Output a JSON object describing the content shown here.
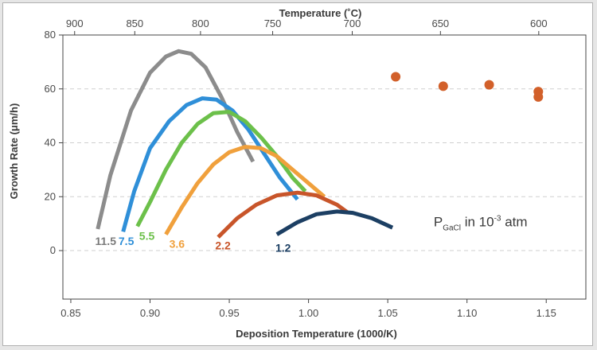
{
  "chart_data": {
    "type": "line",
    "xlabel": "Deposition Temperature (1000/K)",
    "ylabel": "Growth Rate (μm/h)",
    "top_xlabel": "Temperature (˚C)",
    "xlim": [
      0.845,
      1.175
    ],
    "ylim": [
      -18,
      80
    ],
    "x_ticks": [
      0.85,
      0.9,
      0.95,
      1.0,
      1.05,
      1.1,
      1.15
    ],
    "x_tick_labels": [
      "0.85",
      "0.90",
      "0.95",
      "1.00",
      "1.05",
      "1.10",
      "1.15"
    ],
    "y_ticks": [
      0,
      20,
      40,
      60,
      80
    ],
    "y_tick_labels": [
      "0",
      "20",
      "40",
      "60",
      "80"
    ],
    "top_ticks": [
      900,
      850,
      800,
      750,
      700,
      650,
      600
    ],
    "top_tick_labels": [
      "900",
      "850",
      "800",
      "750",
      "700",
      "650",
      "600"
    ],
    "grid": "horizontal dashed",
    "annotation": {
      "main": "P",
      "sub": "GaCl",
      "mid": " in 10",
      "sup": "-3",
      "tail": " atm"
    },
    "series": [
      {
        "name": "11.5",
        "color": "#8c8c8c",
        "x": [
          0.867,
          0.875,
          0.888,
          0.9,
          0.91,
          0.918,
          0.926,
          0.935,
          0.945,
          0.955,
          0.965
        ],
        "y": [
          8,
          28,
          52,
          66,
          72,
          74,
          73,
          68,
          57,
          44,
          33
        ]
      },
      {
        "name": "7.5",
        "color": "#2f8fd8",
        "x": [
          0.883,
          0.89,
          0.9,
          0.912,
          0.923,
          0.933,
          0.942,
          0.952,
          0.962,
          0.972,
          0.982,
          0.993
        ],
        "y": [
          7,
          22,
          38,
          48,
          54,
          56.5,
          56,
          52,
          45,
          36,
          27,
          19
        ]
      },
      {
        "name": "5.5",
        "color": "#6cc04a",
        "x": [
          0.892,
          0.9,
          0.91,
          0.92,
          0.93,
          0.94,
          0.95,
          0.96,
          0.97,
          0.98,
          0.99,
          0.998
        ],
        "y": [
          9,
          18,
          30,
          40,
          47,
          51,
          51.5,
          48,
          42,
          35,
          27,
          22
        ]
      },
      {
        "name": "3.6",
        "color": "#f0a03c",
        "x": [
          0.91,
          0.92,
          0.93,
          0.94,
          0.95,
          0.96,
          0.97,
          0.98,
          0.99,
          1.0,
          1.01
        ],
        "y": [
          6,
          16,
          25,
          32,
          36.5,
          38.5,
          38,
          35,
          30,
          25,
          20
        ]
      },
      {
        "name": "2.2",
        "color": "#c8552a",
        "x": [
          0.943,
          0.955,
          0.967,
          0.98,
          0.993,
          1.005,
          1.018,
          1.025
        ],
        "y": [
          5,
          12,
          17,
          20.5,
          21.5,
          20.5,
          17,
          14
        ]
      },
      {
        "name": "1.2",
        "color": "#1c3f63",
        "x": [
          0.98,
          0.993,
          1.005,
          1.018,
          1.028,
          1.04,
          1.053
        ],
        "y": [
          6,
          10.5,
          13.5,
          14.5,
          14,
          12,
          8.5
        ]
      },
      {
        "name": "",
        "color": "#d2602a",
        "style": "points",
        "x": [
          1.055,
          1.085,
          1.114,
          1.145,
          1.145
        ],
        "y": [
          64.5,
          61,
          61.5,
          59,
          57
        ]
      }
    ],
    "labels": [
      {
        "text": "11.5",
        "x": 0.872,
        "y": 2,
        "color": "#7a7a7a"
      },
      {
        "text": "7.5",
        "x": 0.885,
        "y": 2,
        "color": "#2f8fd8"
      },
      {
        "text": "5.5",
        "x": 0.898,
        "y": 4,
        "color": "#6cc04a"
      },
      {
        "text": "3.6",
        "x": 0.917,
        "y": 1,
        "color": "#f0a03c"
      },
      {
        "text": "2.2",
        "x": 0.946,
        "y": 0.5,
        "color": "#c8552a"
      },
      {
        "text": "1.2",
        "x": 0.984,
        "y": -0.5,
        "color": "#1c3f63"
      }
    ]
  }
}
